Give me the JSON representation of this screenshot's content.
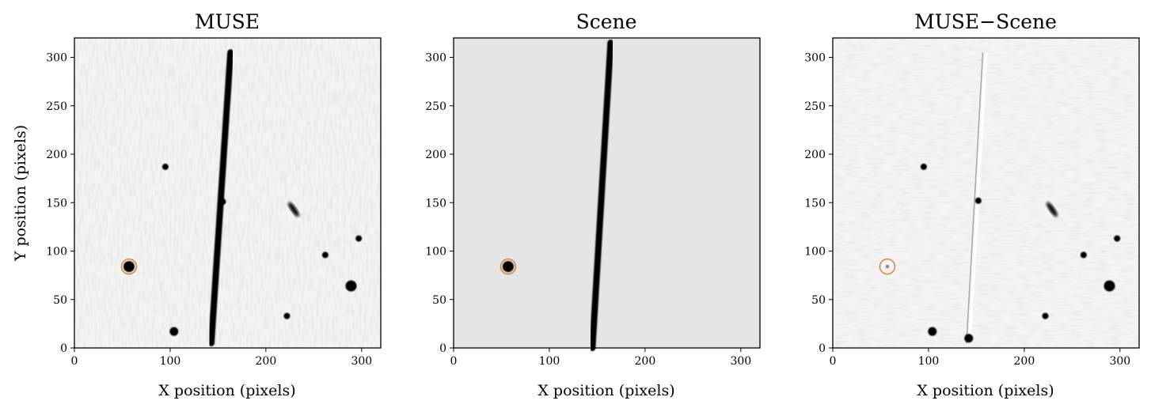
{
  "figure": {
    "panels": [
      {
        "id": "muse",
        "title": "MUSE",
        "xlabel": "X position (pixels)",
        "ylabel": "Y position (pixels)",
        "xlim": [
          0,
          320
        ],
        "ylim": [
          0,
          320
        ],
        "xticks": [
          "0",
          "100",
          "200",
          "300"
        ],
        "yticks": [
          "0",
          "50",
          "100",
          "150",
          "200",
          "250",
          "300"
        ],
        "image_style": "noisy-gray-field",
        "streak": {
          "x_start": 143,
          "y_start": 5,
          "x_end": 163,
          "y_end": 305
        },
        "circle_marker": {
          "x": 57,
          "y": 84,
          "color": "#d98a3d"
        },
        "sources": [
          {
            "x": 57,
            "y": 84,
            "size": "large"
          },
          {
            "x": 95,
            "y": 187,
            "size": "small"
          },
          {
            "x": 104,
            "y": 17,
            "size": "medium"
          },
          {
            "x": 155,
            "y": 151,
            "size": "small"
          },
          {
            "x": 222,
            "y": 33,
            "size": "small"
          },
          {
            "x": 229,
            "y": 143,
            "size": "elongated"
          },
          {
            "x": 262,
            "y": 96,
            "size": "small"
          },
          {
            "x": 289,
            "y": 64,
            "size": "large"
          },
          {
            "x": 297,
            "y": 113,
            "size": "small"
          }
        ]
      },
      {
        "id": "scene",
        "title": "Scene",
        "xlabel": "X position (pixels)",
        "ylabel": "",
        "xlim": [
          0,
          320
        ],
        "ylim": [
          0,
          320
        ],
        "xticks": [
          "0",
          "100",
          "200",
          "300"
        ],
        "yticks": [
          "0",
          "50",
          "100",
          "150",
          "200",
          "250",
          "300"
        ],
        "image_style": "flat-gray-field",
        "streak": {
          "x_start": 145,
          "y_start": 0,
          "x_end": 164,
          "y_end": 315
        },
        "circle_marker": {
          "x": 57,
          "y": 84,
          "color": "#d98a3d"
        },
        "sources": [
          {
            "x": 57,
            "y": 84,
            "size": "large"
          }
        ]
      },
      {
        "id": "residual",
        "title": "MUSE−Scene",
        "xlabel": "X position (pixels)",
        "ylabel": "",
        "xlim": [
          0,
          320
        ],
        "ylim": [
          0,
          320
        ],
        "xticks": [
          "0",
          "100",
          "200",
          "300"
        ],
        "yticks": [
          "0",
          "50",
          "100",
          "150",
          "200",
          "250",
          "300"
        ],
        "image_style": "noisy-gray-field",
        "streak_residual": {
          "x_start": 143,
          "y_start": 5,
          "x_end": 160,
          "y_end": 305
        },
        "circle_marker": {
          "x": 57,
          "y": 84,
          "color": "#d98a3d"
        },
        "sources": [
          {
            "x": 57,
            "y": 84,
            "size": "faint"
          },
          {
            "x": 95,
            "y": 187,
            "size": "small"
          },
          {
            "x": 104,
            "y": 17,
            "size": "medium"
          },
          {
            "x": 142,
            "y": 10,
            "size": "medium"
          },
          {
            "x": 152,
            "y": 152,
            "size": "small"
          },
          {
            "x": 222,
            "y": 33,
            "size": "small"
          },
          {
            "x": 229,
            "y": 143,
            "size": "elongated"
          },
          {
            "x": 262,
            "y": 96,
            "size": "small"
          },
          {
            "x": 289,
            "y": 64,
            "size": "large"
          },
          {
            "x": 297,
            "y": 113,
            "size": "small"
          }
        ]
      }
    ]
  }
}
